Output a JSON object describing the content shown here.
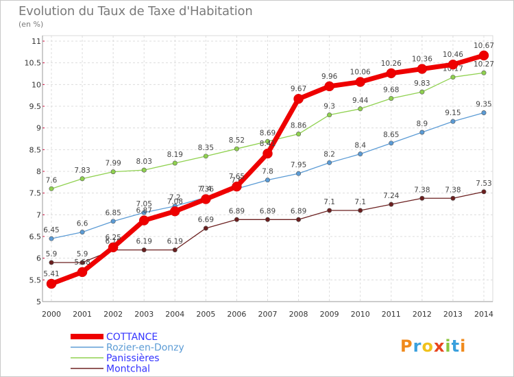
{
  "title": "Evolution du Taux de Taxe d'Habitation",
  "subtitle": "(en %)",
  "logo_text": "Proxiti",
  "chart_data": {
    "type": "line",
    "title": "Evolution du Taux de Taxe d'Habitation",
    "ylabel": "(en %)",
    "xlabel": "",
    "x": [
      "2000",
      "2001",
      "2002",
      "2003",
      "2004",
      "2005",
      "2006",
      "2007",
      "2008",
      "2009",
      "2010",
      "2011",
      "2012",
      "2013",
      "2014"
    ],
    "ylim": [
      5,
      11
    ],
    "yticks": [
      5,
      5.5,
      6,
      6.5,
      7,
      7.5,
      8,
      8.5,
      9,
      9.5,
      10,
      10.5,
      11
    ],
    "ytick_labels": [
      "5",
      "5.5",
      "6",
      "6.5",
      "7",
      "7.5",
      "8",
      "8.5",
      "9",
      "9.5",
      "10",
      "10.5",
      "11"
    ],
    "grid": true,
    "legend_position": "bottom-left",
    "series": [
      {
        "name": "Montchal",
        "color": "#6b1f1f",
        "values": [
          5.9,
          5.9,
          6.19,
          6.19,
          6.19,
          6.69,
          6.89,
          6.89,
          6.89,
          7.1,
          7.1,
          7.24,
          7.38,
          7.38,
          7.53
        ],
        "labels": [
          "5.9",
          "5.9",
          "6.19",
          "6.19",
          "6.19",
          "6.69",
          "6.89",
          "6.89",
          "6.89",
          "7.1",
          "7.1",
          "7.24",
          "7.38",
          "7.38",
          "7.53"
        ]
      },
      {
        "name": "Panissières",
        "color": "#8fd14f",
        "values": [
          7.6,
          7.83,
          7.99,
          8.03,
          8.19,
          8.35,
          8.52,
          8.69,
          8.86,
          9.3,
          9.44,
          9.68,
          9.83,
          10.17,
          10.27
        ],
        "labels": [
          "7.6",
          "7.83",
          "7.99",
          "8.03",
          "8.19",
          "8.35",
          "8.52",
          "8.69",
          "8.86",
          "9.3",
          "9.44",
          "9.68",
          "9.83",
          "10.17",
          "10.27"
        ]
      },
      {
        "name": "Rozier-en-Donzy",
        "color": "#5b9bd5",
        "values": [
          6.45,
          6.6,
          6.85,
          7.05,
          7.2,
          7.4,
          7.6,
          7.8,
          7.95,
          8.2,
          8.4,
          8.65,
          8.9,
          9.15,
          9.35
        ],
        "labels": [
          "6.45",
          "6.6",
          "6.85",
          "7.05",
          "7.2",
          "7.4",
          "7.6",
          "7.8",
          "7.95",
          "8.2",
          "8.4",
          "8.65",
          "8.9",
          "9.15",
          "9.35"
        ]
      },
      {
        "name": "COTTANCE",
        "color": "#ee0000",
        "values": [
          5.41,
          5.68,
          6.25,
          6.87,
          7.08,
          7.36,
          7.65,
          8.41,
          9.67,
          9.96,
          10.06,
          10.26,
          10.36,
          10.46,
          10.67
        ],
        "labels": [
          "5.41",
          "5.68",
          "6.25",
          "6.87",
          "7.08",
          "7.36",
          "7.65",
          "8.41",
          "9.67",
          "9.96",
          "10.06",
          "10.26",
          "10.36",
          "10.46",
          "10.67"
        ]
      }
    ],
    "legend": [
      {
        "name": "COTTANCE",
        "color": "#ee0000",
        "text_color": "#3333ff"
      },
      {
        "name": "Rozier-en-Donzy",
        "color": "#5b9bd5",
        "text_color": "#5b9bd5"
      },
      {
        "name": "Panissières",
        "color": "#8fd14f",
        "text_color": "#3333ff"
      },
      {
        "name": "Montchal",
        "color": "#6b1f1f",
        "text_color": "#3333ff"
      }
    ]
  }
}
